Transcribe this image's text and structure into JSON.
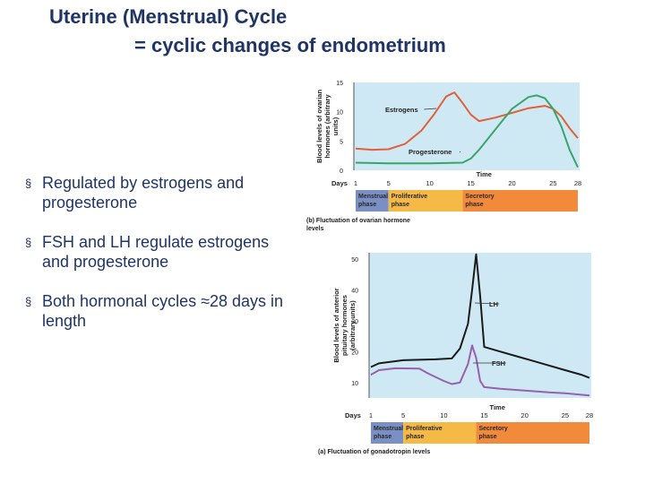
{
  "slide": {
    "title_line1": "Uterine (Menstrual) Cycle",
    "title_line2": "= cyclic changes of endometrium",
    "bullet_marker": "§",
    "bullets": [
      "Regulated by estrogens and progesterone",
      "FSH and LH regulate estrogens and progesterone",
      "Both hormonal cycles ≈28 days in length"
    ]
  },
  "colors": {
    "title": "#1f3566",
    "plot_bg": "#cfe9f4",
    "estrogen": "#e0603a",
    "progesterone": "#3aa56a",
    "lh": "#1a1a1a",
    "fsh": "#9a5fae",
    "menstrual_phase": "#7a8fc4",
    "proliferative_phase": "#f5b947",
    "secretory_phase": "#f28a3c"
  },
  "chart_data": [
    {
      "type": "line",
      "caption": "(b) Fluctuation of ovarian hormone levels",
      "ylabel": "Blood levels of ovarian hormones (arbitrary units)",
      "xlabel": "Time",
      "x_prefix": "Days",
      "xlim": [
        1,
        28
      ],
      "ylim": [
        0,
        15
      ],
      "xticks": [
        1,
        5,
        10,
        15,
        20,
        25,
        28
      ],
      "yticks": [
        0,
        5,
        10,
        15
      ],
      "series": [
        {
          "name": "Estrogens",
          "color": "#e0603a",
          "points": [
            [
              1,
              3.7
            ],
            [
              3,
              3.5
            ],
            [
              5,
              3.6
            ],
            [
              7,
              4.5
            ],
            [
              9,
              6.8
            ],
            [
              10.5,
              9.5
            ],
            [
              12,
              12.6
            ],
            [
              13,
              13.3
            ],
            [
              14,
              11.5
            ],
            [
              15,
              9.5
            ],
            [
              16,
              8.4
            ],
            [
              18,
              9
            ],
            [
              20,
              9.8
            ],
            [
              22,
              10.6
            ],
            [
              24,
              11
            ],
            [
              25,
              10.5
            ],
            [
              26,
              9.2
            ],
            [
              27,
              7.2
            ],
            [
              28,
              5.5
            ]
          ]
        },
        {
          "name": "Progesterone",
          "color": "#3aa56a",
          "points": [
            [
              1,
              1.3
            ],
            [
              5,
              1.2
            ],
            [
              10,
              1.2
            ],
            [
              14,
              1.3
            ],
            [
              15,
              2
            ],
            [
              16,
              3.5
            ],
            [
              18,
              7
            ],
            [
              20,
              10.5
            ],
            [
              22,
              12.5
            ],
            [
              23,
              12.8
            ],
            [
              24,
              12.3
            ],
            [
              25,
              10.5
            ],
            [
              26,
              7.5
            ],
            [
              27,
              3.5
            ],
            [
              28,
              0.5
            ]
          ]
        }
      ],
      "series_labels": [
        {
          "text": "Estrogens",
          "series": "Estrogens"
        },
        {
          "text": "Progesterone",
          "series": "Progesterone"
        }
      ],
      "phases": [
        {
          "label": "Menstrual phase",
          "start": 1,
          "end": 5,
          "color": "#7a8fc4"
        },
        {
          "label": "Proliferative phase",
          "start": 5,
          "end": 14,
          "color": "#f5b947"
        },
        {
          "label": "Secretory phase",
          "start": 14,
          "end": 28,
          "color": "#f28a3c"
        }
      ]
    },
    {
      "type": "line",
      "caption": "(a) Fluctuation of gonadotropin levels",
      "ylabel": "Blood levels of anterior pituitary hormones (arbitrary units)",
      "xlabel": "Time",
      "x_prefix": "Days",
      "xlim": [
        1,
        28
      ],
      "ylim": [
        5,
        52
      ],
      "xticks": [
        1,
        5,
        10,
        15,
        20,
        25,
        28
      ],
      "yticks": [
        10,
        20,
        30,
        40,
        50
      ],
      "series": [
        {
          "name": "LH",
          "color": "#1a1a1a",
          "points": [
            [
              1,
              15
            ],
            [
              2,
              16.2
            ],
            [
              5,
              17.2
            ],
            [
              9,
              17.5
            ],
            [
              11,
              17.8
            ],
            [
              12,
              21
            ],
            [
              13,
              29
            ],
            [
              13.5,
              40
            ],
            [
              14,
              51.5
            ],
            [
              14.5,
              38
            ],
            [
              15,
              21.5
            ],
            [
              17,
              20
            ],
            [
              19,
              18.5
            ],
            [
              21,
              17
            ],
            [
              23,
              15.5
            ],
            [
              25,
              14
            ],
            [
              27,
              12.5
            ],
            [
              28,
              11.5
            ]
          ]
        },
        {
          "name": "FSH",
          "color": "#9a5fae",
          "points": [
            [
              1,
              12.5
            ],
            [
              2,
              14
            ],
            [
              4,
              14.6
            ],
            [
              7,
              14.5
            ],
            [
              8,
              13
            ],
            [
              10,
              10.5
            ],
            [
              11,
              9.5
            ],
            [
              12,
              10
            ],
            [
              13,
              16
            ],
            [
              13.5,
              22
            ],
            [
              14,
              18
            ],
            [
              14.5,
              10.5
            ],
            [
              15,
              8.5
            ],
            [
              17,
              8
            ],
            [
              20,
              7.4
            ],
            [
              23,
              6.8
            ],
            [
              25,
              6.5
            ],
            [
              28,
              5.8
            ]
          ]
        }
      ],
      "series_labels": [
        {
          "text": "LH",
          "series": "LH"
        },
        {
          "text": "FSH",
          "series": "FSH"
        }
      ],
      "phases": [
        {
          "label": "Menstrual phase",
          "start": 1,
          "end": 5,
          "color": "#7a8fc4"
        },
        {
          "label": "Proliferative phase",
          "start": 5,
          "end": 14,
          "color": "#f5b947"
        },
        {
          "label": "Secretory phase",
          "start": 14,
          "end": 28,
          "color": "#f28a3c"
        }
      ]
    }
  ]
}
